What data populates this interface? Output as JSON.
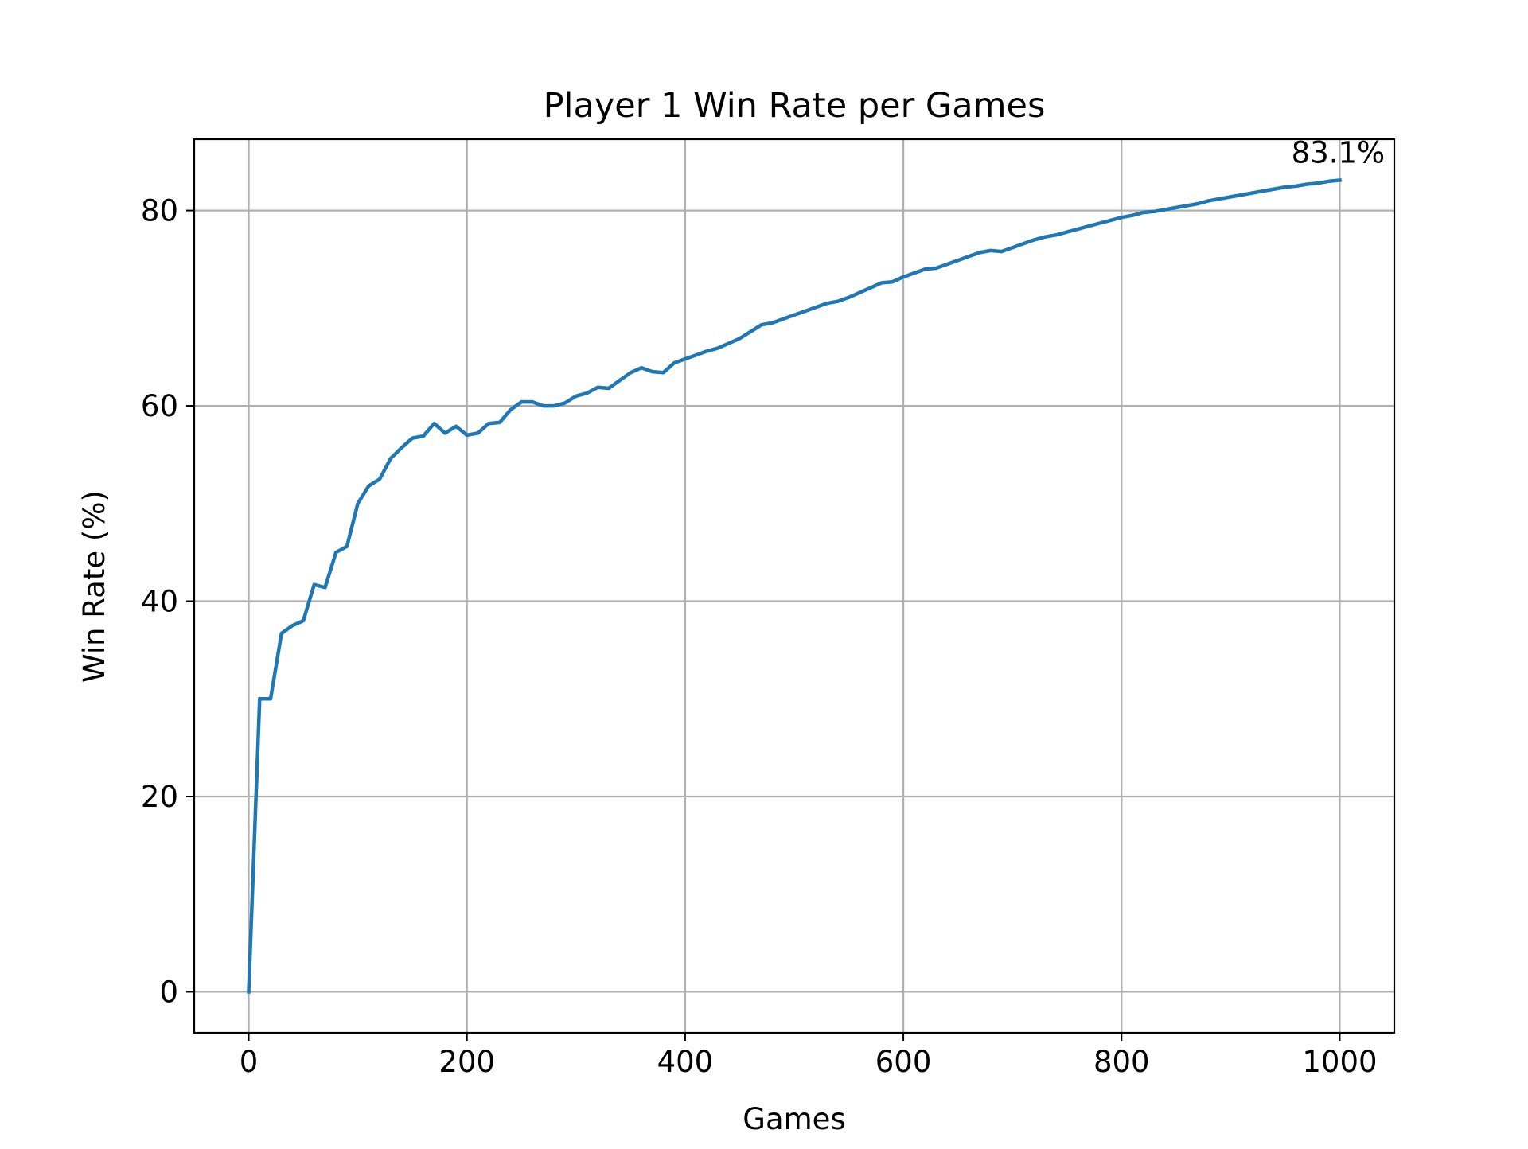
{
  "chart_data": {
    "type": "line",
    "title": "Player 1 Win Rate per Games",
    "xlabel": "Games",
    "ylabel": "Win Rate (%)",
    "xlim": [
      -50,
      1050
    ],
    "ylim": [
      -4.2,
      87.3
    ],
    "xticks": [
      0,
      200,
      400,
      600,
      800,
      1000
    ],
    "yticks": [
      0,
      20,
      40,
      60,
      80
    ],
    "grid": true,
    "series": [
      {
        "color": "#1f77b4",
        "x": [
          0,
          10,
          20,
          30,
          40,
          50,
          60,
          70,
          80,
          90,
          100,
          110,
          120,
          130,
          140,
          150,
          160,
          170,
          180,
          190,
          200,
          210,
          220,
          230,
          240,
          250,
          260,
          270,
          280,
          290,
          300,
          310,
          320,
          330,
          340,
          350,
          360,
          370,
          380,
          390,
          400,
          410,
          420,
          430,
          440,
          450,
          460,
          470,
          480,
          490,
          500,
          510,
          520,
          530,
          540,
          550,
          560,
          570,
          580,
          590,
          600,
          610,
          620,
          630,
          640,
          650,
          660,
          670,
          680,
          690,
          700,
          710,
          720,
          730,
          740,
          750,
          760,
          770,
          780,
          790,
          800,
          810,
          820,
          830,
          840,
          850,
          860,
          870,
          880,
          890,
          900,
          910,
          920,
          930,
          940,
          950,
          960,
          970,
          980,
          990,
          1000
        ],
        "y": [
          0,
          30.0,
          30.0,
          36.7,
          37.5,
          38.0,
          41.7,
          41.4,
          45.0,
          45.6,
          50.0,
          51.8,
          52.5,
          54.6,
          55.7,
          56.7,
          56.9,
          58.2,
          57.2,
          57.9,
          57.0,
          57.2,
          58.2,
          58.3,
          59.6,
          60.4,
          60.4,
          60.0,
          60.0,
          60.3,
          61.0,
          61.3,
          61.9,
          61.8,
          62.6,
          63.4,
          63.9,
          63.5,
          63.4,
          64.4,
          64.8,
          65.2,
          65.6,
          65.9,
          66.4,
          66.9,
          67.6,
          68.3,
          68.5,
          68.9,
          69.3,
          69.7,
          70.1,
          70.5,
          70.7,
          71.1,
          71.6,
          72.1,
          72.6,
          72.7,
          73.2,
          73.6,
          74.0,
          74.1,
          74.5,
          74.9,
          75.3,
          75.7,
          75.9,
          75.8,
          76.2,
          76.6,
          77.0,
          77.3,
          77.5,
          77.8,
          78.1,
          78.4,
          78.7,
          79.0,
          79.3,
          79.5,
          79.8,
          79.9,
          80.1,
          80.3,
          80.5,
          80.7,
          81.0,
          81.2,
          81.4,
          81.6,
          81.8,
          82.0,
          82.2,
          82.4,
          82.5,
          82.7,
          82.8,
          83.0,
          83.1
        ]
      }
    ],
    "annotations": [
      {
        "text": "83.1%",
        "x": 1000,
        "y": 83.1
      }
    ]
  }
}
